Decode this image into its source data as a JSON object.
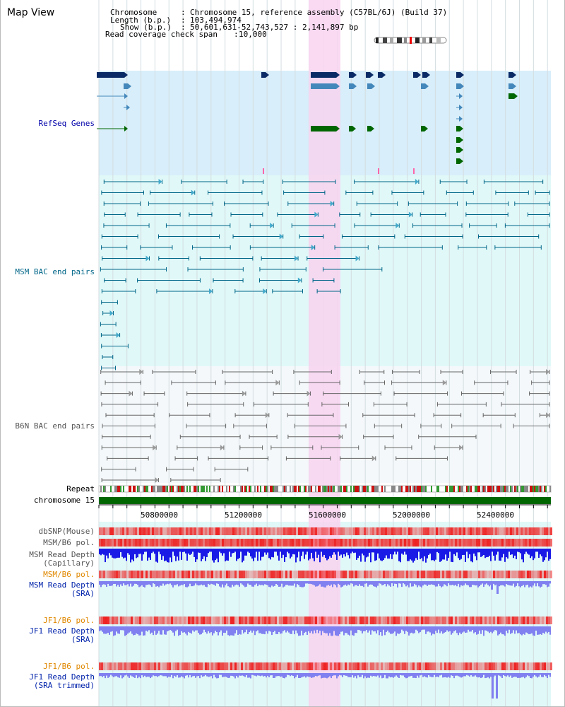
{
  "page": {
    "title": "Map View",
    "header": {
      "chromosome_key": "Chromosome",
      "chromosome_value": "Chromosome 15, reference assembly (C57BL/6J) (Build 37)",
      "length_key": "Length (b.p.)",
      "length_value": "103,494,974",
      "show_key": "Show (b.p.)",
      "show_value": "50,601,631-52,743,527 : 2,141,897 bp",
      "coverage_key": "Read coverage check span",
      "coverage_value": "10,000"
    }
  },
  "tracks": {
    "refseq": "RefSeq Genes",
    "msm_bac": "MSM BAC end pairs",
    "b6n_bac": "B6N BAC end pairs",
    "repeat": "Repeat",
    "chromosome": "chromosome 15",
    "dbsnp": "dbSNP(Mouse)",
    "msm_b6_pol": "MSM/B6 pol.",
    "msm_depth_cap": "MSM Read Depth\n(Capillary)",
    "msm_b6_pol_2": "MSM/B6 pol.",
    "msm_depth_sra": "MSM Read Depth\n(SRA)",
    "jf1_b6_pol": "JF1/B6 pol.",
    "jf1_depth_sra": "JF1 Read Depth\n(SRA)",
    "jf1_b6_pol_2": "JF1/B6 pol.",
    "jf1_depth_trim": "JF1 Read Depth\n(SRA trimmed)"
  },
  "axis": {
    "ticks": [
      "50800000",
      "51200000",
      "51600000",
      "52000000",
      "52400000"
    ]
  },
  "colors": {
    "refseq_bg": "#d8eefa",
    "msm_bg": "#e0f8f8",
    "b6n_bg": "#f4f8fa",
    "lower_bg": "#e0f8f8",
    "highlight": "#f8d4f0",
    "chrom_bar": "#006600",
    "refseq_label": "#0000aa",
    "msm_label": "#006688",
    "b6n_label": "#555555",
    "orange_label": "#e08800",
    "blue_label": "#0022aa",
    "depth_blue": "#1a1ae6",
    "depth_light": "#8080f0",
    "pol_red": "#ee2222"
  }
}
